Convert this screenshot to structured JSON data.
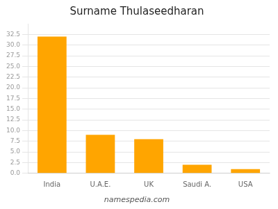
{
  "chart_data": {
    "type": "bar",
    "title": "Surname Thulaseedharan",
    "annotations": [
      "namespedia.com"
    ],
    "categories": [
      "India",
      "U.A.E.",
      "UK",
      "Saudi A.",
      "USA"
    ],
    "values": [
      32.0,
      9.0,
      8.0,
      2.0,
      1.0
    ],
    "color": "#FFA500",
    "ylim": [
      0,
      35
    ],
    "yticks": [
      {
        "value": 0,
        "label": "0.0"
      },
      2.5,
      {
        "value": 5,
        "label": "5.0"
      },
      7.5,
      {
        "value": 10,
        "label": "10.0"
      },
      12.5,
      {
        "value": 15,
        "label": "15.0"
      },
      17.5,
      {
        "value": 20,
        "label": "20.0"
      },
      22.5,
      {
        "value": 25,
        "label": "25.0"
      },
      27.5,
      {
        "value": 30,
        "label": "30.0"
      },
      32.5
    ],
    "grid": true
  }
}
